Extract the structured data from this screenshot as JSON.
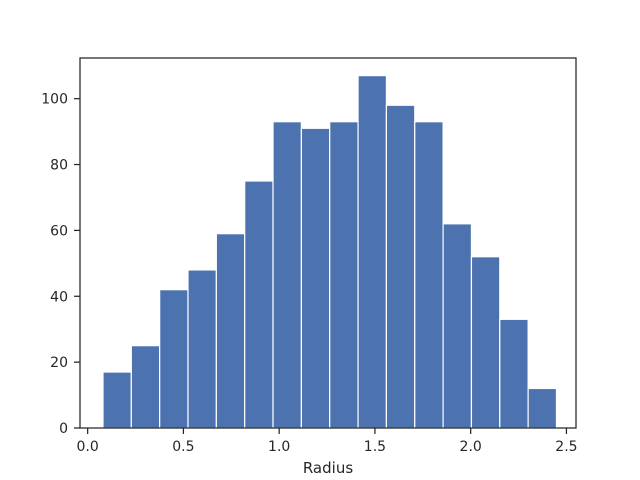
{
  "chart_data": {
    "type": "bar",
    "xlabel": "Radius",
    "ylabel": "",
    "xlim": [
      -0.04,
      2.55
    ],
    "ylim": [
      0,
      112.35
    ],
    "x_ticks": [
      0.0,
      0.5,
      1.0,
      1.5,
      2.0,
      2.5
    ],
    "x_tick_labels": [
      "0.0",
      "0.5",
      "1.0",
      "1.5",
      "2.0",
      "2.5"
    ],
    "y_ticks": [
      0,
      20,
      40,
      60,
      80,
      100
    ],
    "y_tick_labels": [
      "0",
      "20",
      "40",
      "60",
      "80",
      "100"
    ],
    "grid": false,
    "bins": [
      {
        "x0": 0.08,
        "x1": 0.228,
        "count": 17
      },
      {
        "x0": 0.228,
        "x1": 0.376,
        "count": 25
      },
      {
        "x0": 0.376,
        "x1": 0.524,
        "count": 42
      },
      {
        "x0": 0.524,
        "x1": 0.672,
        "count": 48
      },
      {
        "x0": 0.672,
        "x1": 0.82,
        "count": 59
      },
      {
        "x0": 0.82,
        "x1": 0.968,
        "count": 75
      },
      {
        "x0": 0.968,
        "x1": 1.116,
        "count": 93
      },
      {
        "x0": 1.116,
        "x1": 1.264,
        "count": 91
      },
      {
        "x0": 1.264,
        "x1": 1.412,
        "count": 93
      },
      {
        "x0": 1.412,
        "x1": 1.56,
        "count": 107
      },
      {
        "x0": 1.56,
        "x1": 1.708,
        "count": 98
      },
      {
        "x0": 1.708,
        "x1": 1.856,
        "count": 93
      },
      {
        "x0": 1.856,
        "x1": 2.004,
        "count": 62
      },
      {
        "x0": 2.004,
        "x1": 2.152,
        "count": 52
      },
      {
        "x0": 2.152,
        "x1": 2.3,
        "count": 33
      },
      {
        "x0": 2.3,
        "x1": 2.448,
        "count": 12
      }
    ],
    "colors": {
      "bar": "#4c72b0",
      "edge": "#ffffff",
      "axis": "#262626"
    }
  }
}
